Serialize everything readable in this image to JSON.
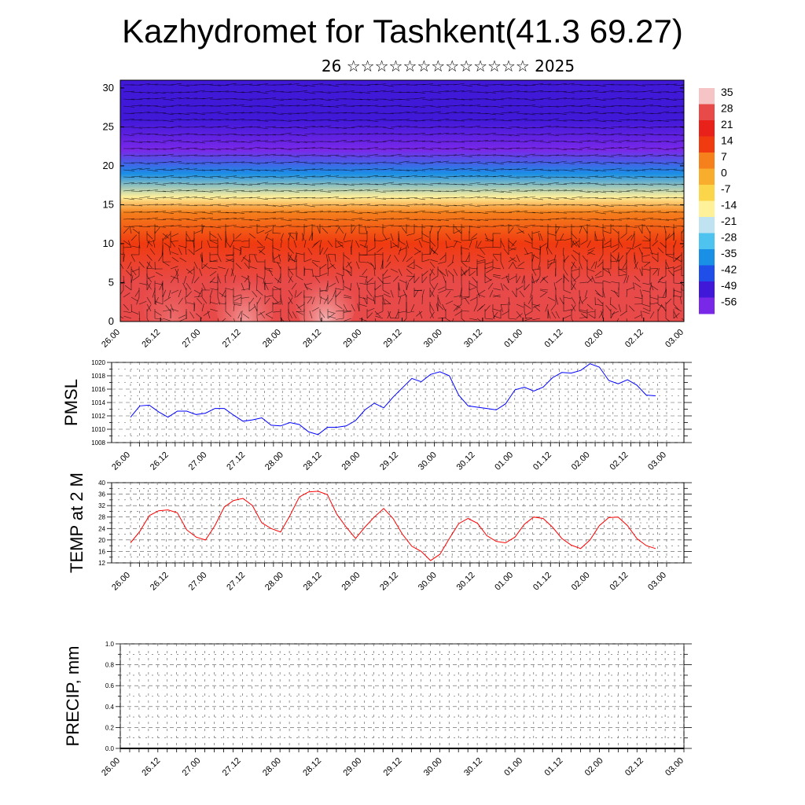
{
  "title": "Kazhydromet for Tashkent(41.3 69.27)",
  "subtitle": "26 ☆☆☆☆☆☆☆☆☆☆☆☆☆ 2025",
  "time_labels": [
    "26.00",
    "26.12",
    "27.00",
    "27.12",
    "28.00",
    "28.12",
    "29.00",
    "29.12",
    "30.00",
    "30.12",
    "01.00",
    "01.12",
    "02.00",
    "02.12",
    "03.00"
  ],
  "chart_data": [
    {
      "type": "heatmap",
      "name": "",
      "y_ticks": [
        0,
        5,
        10,
        15,
        20,
        25,
        30
      ],
      "ylim": [
        0,
        31
      ],
      "colorbar_labels": [
        "35",
        "28",
        "21",
        "14",
        "7",
        "0",
        "-7",
        "-14",
        "-21",
        "-28",
        "-35",
        "-42",
        "-49",
        "-56"
      ],
      "colorbar_colors": [
        "#f6c4c4",
        "#e84a4a",
        "#e8221a",
        "#f03a10",
        "#f5801c",
        "#f9ad2c",
        "#fbd54a",
        "#fff09a",
        "#bfe3f0",
        "#4fc3f0",
        "#1a8fe6",
        "#1f4fe8",
        "#4018d8",
        "#7a28e8"
      ],
      "profile": [
        {
          "level": 0,
          "value": 30
        },
        {
          "level": 5,
          "value": 26
        },
        {
          "level": 10,
          "value": 17
        },
        {
          "level": 14,
          "value": 5
        },
        {
          "level": 16,
          "value": -12
        },
        {
          "level": 19,
          "value": -38
        },
        {
          "level": 22,
          "value": -56
        },
        {
          "level": 26,
          "value": -50
        },
        {
          "level": 31,
          "value": -48
        }
      ]
    },
    {
      "type": "line",
      "ylabel": "PMSL",
      "ylim": [
        1008,
        1020
      ],
      "y_ticks": [
        1008,
        1010,
        1012,
        1014,
        1016,
        1018,
        1020
      ],
      "color": "#0000ff",
      "series": [
        {
          "values": [
            1011.8,
            1013.5,
            1013.6,
            1012.6,
            1011.8,
            1012.7,
            1012.7,
            1012.2,
            1012.4,
            1013.1,
            1013.1,
            1012.1,
            1011.2,
            1011.4,
            1011.7,
            1010.6,
            1010.5,
            1011.0,
            1010.7,
            1009.6,
            1009.2,
            1010.3,
            1010.3,
            1010.5,
            1011.3,
            1012.9,
            1013.9,
            1013.2,
            1014.8,
            1016.2,
            1017.6,
            1017.1,
            1018.2,
            1018.6,
            1018.0,
            1015.1,
            1013.5,
            1013.3,
            1013.1,
            1012.9,
            1013.8,
            1015.9,
            1016.3,
            1015.7,
            1016.3,
            1017.7,
            1018.5,
            1018.4,
            1018.8,
            1019.8,
            1019.3,
            1017.3,
            1016.8,
            1017.4,
            1016.6,
            1015.1,
            1015.0
          ]
        }
      ]
    },
    {
      "type": "line",
      "ylabel": "TEMP at 2 M",
      "ylim": [
        12,
        40
      ],
      "y_ticks": [
        12,
        16,
        20,
        24,
        28,
        32,
        36,
        40
      ],
      "color": "#ff0000",
      "series": [
        {
          "values": [
            19.0,
            23.0,
            28.5,
            30.2,
            30.5,
            29.5,
            23.5,
            21.0,
            20.0,
            25.0,
            31.5,
            33.8,
            34.5,
            32.0,
            26.0,
            24.0,
            22.8,
            28.5,
            35.0,
            36.8,
            37.0,
            35.8,
            29.0,
            24.5,
            20.5,
            24.5,
            28.0,
            31.0,
            27.5,
            22.0,
            17.8,
            16.0,
            12.8,
            15.0,
            20.5,
            25.7,
            27.5,
            25.8,
            21.5,
            19.5,
            19.0,
            21.0,
            25.5,
            28.0,
            27.5,
            24.5,
            20.5,
            18.2,
            17.0,
            20.0,
            25.0,
            27.8,
            28.0,
            25.0,
            20.5,
            18.0,
            17.0
          ]
        }
      ]
    },
    {
      "type": "bar",
      "ylabel": "PRECIP, mm",
      "ylim": [
        0,
        1
      ],
      "y_ticks": [
        "0.0",
        "0.2",
        "0.4",
        "0.6",
        "0.8",
        "1.0"
      ],
      "values": []
    }
  ]
}
